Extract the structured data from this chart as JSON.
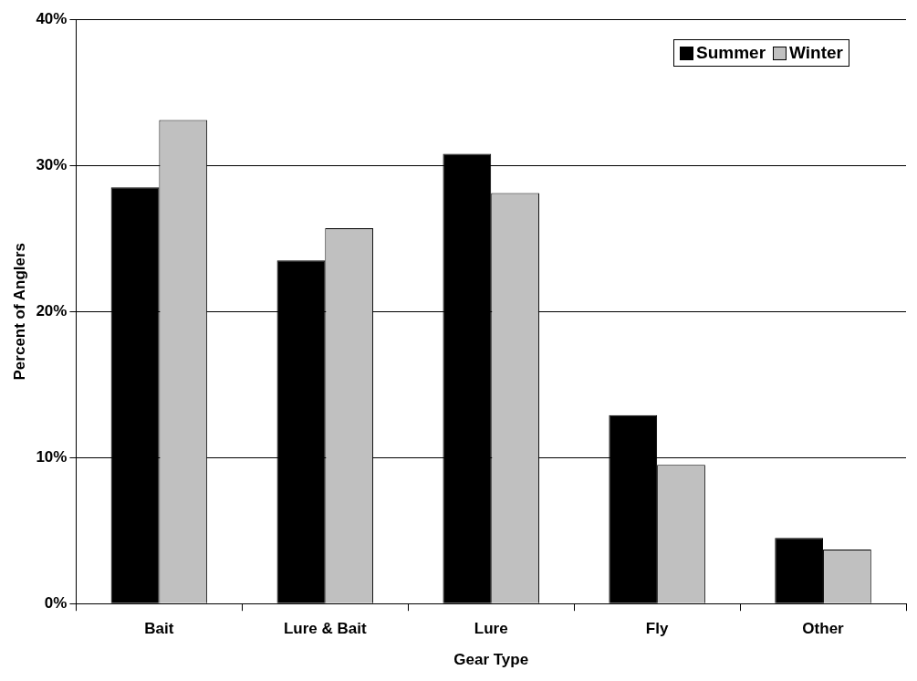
{
  "chart_data": {
    "type": "bar",
    "xlabel": "Gear Type",
    "ylabel": "Percent of Anglers",
    "categories": [
      "Bait",
      "Lure & Bait",
      "Lure",
      "Fly",
      "Other"
    ],
    "series": [
      {
        "name": "Summer",
        "color": "#000000",
        "values": [
          28.5,
          23.5,
          30.8,
          12.9,
          4.5
        ]
      },
      {
        "name": "Winter",
        "color": "#c0c0c0",
        "values": [
          33.1,
          25.7,
          28.1,
          9.5,
          3.7
        ]
      }
    ],
    "ylim": [
      0,
      40
    ],
    "yticks": [
      {
        "value": 0,
        "label": "0%"
      },
      {
        "value": 10,
        "label": "10%"
      },
      {
        "value": 20,
        "label": "20%"
      },
      {
        "value": 30,
        "label": "30%"
      },
      {
        "value": 40,
        "label": "40%"
      }
    ],
    "grid": "y",
    "legend": "top right"
  }
}
